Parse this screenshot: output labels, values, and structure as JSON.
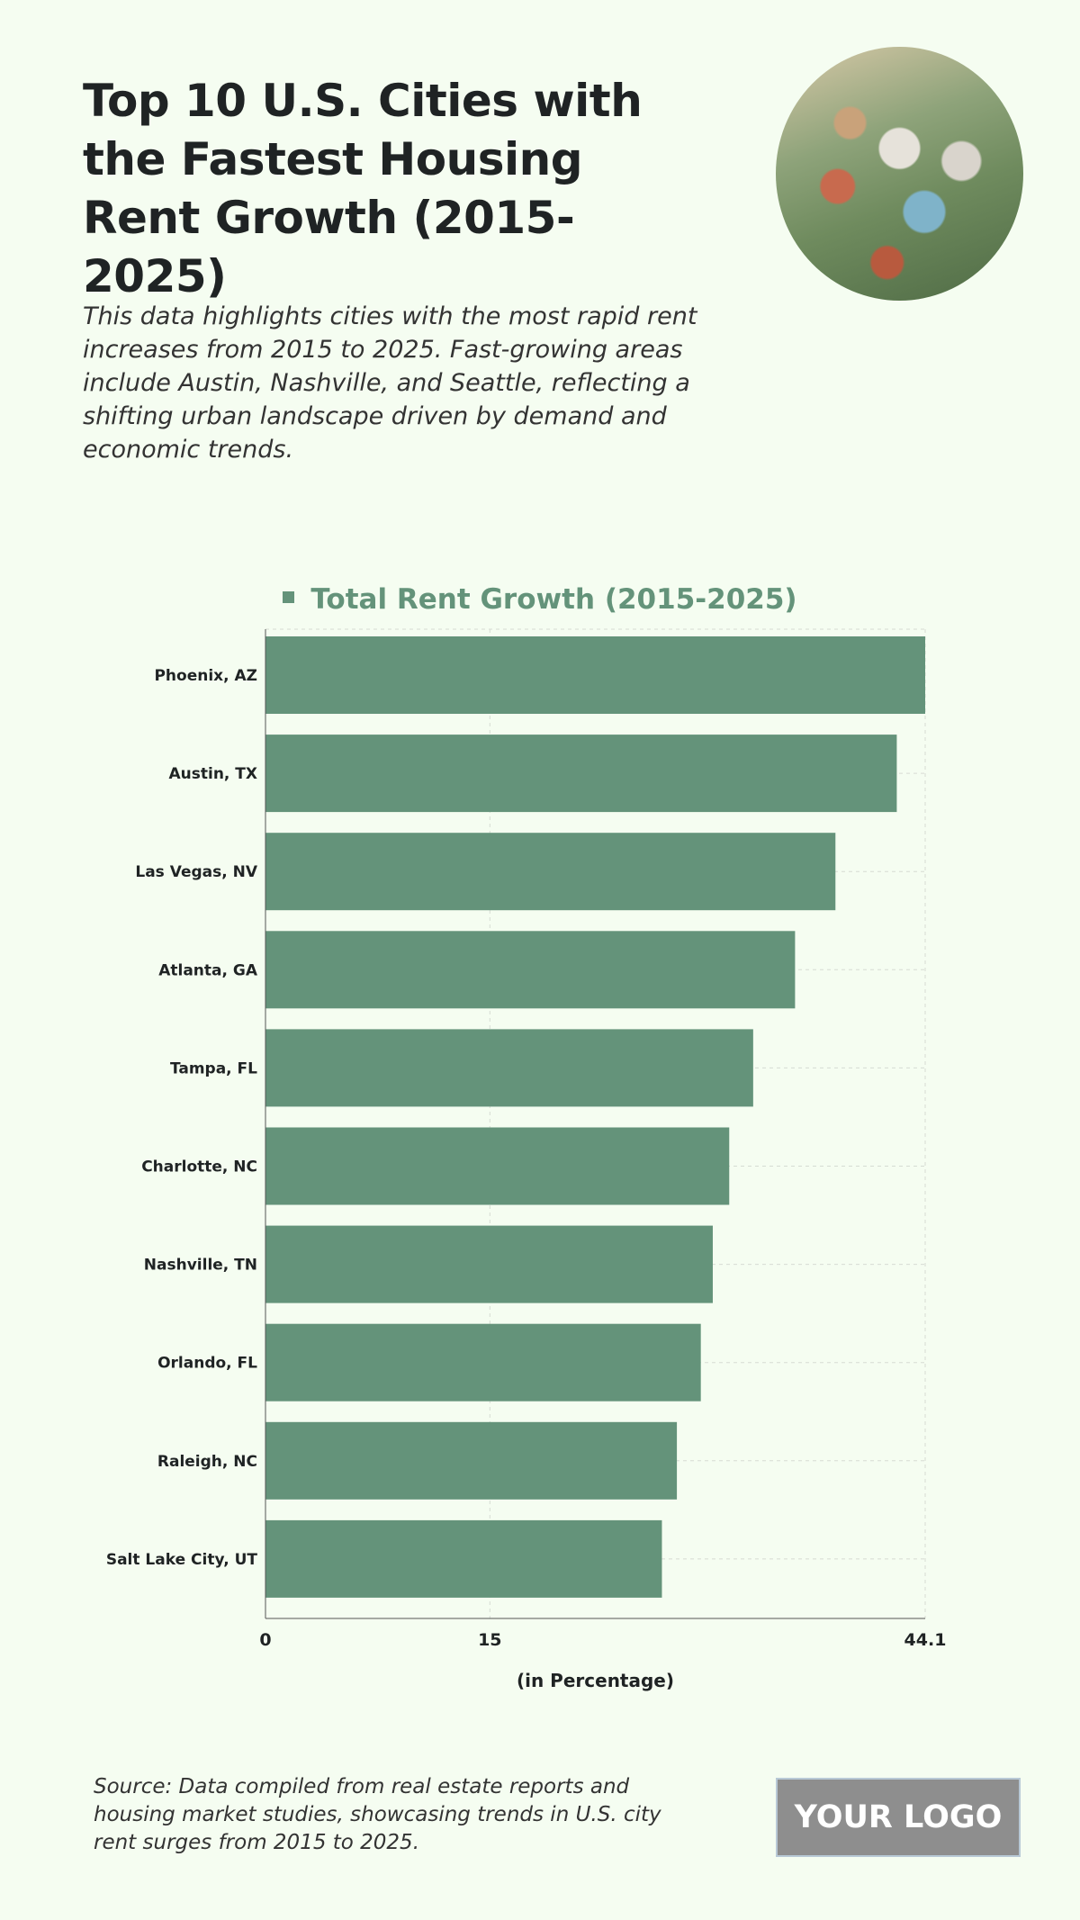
{
  "header": {
    "title": "Top 10 U.S. Cities with the Fastest Housing Rent Growth (2015-2025)",
    "description": "This data highlights cities with the most rapid rent increases from 2015 to 2025. Fast-growing areas include Austin, Nashville, and Seattle, reflecting a shifting urban landscape driven by demand and economic trends."
  },
  "footer": {
    "source": "Source: Data compiled from real estate reports and housing market studies, showcasing trends in U.S. city rent surges from 2015 to 2025.",
    "logo": "YOUR LOGO"
  },
  "chart_data": {
    "type": "bar",
    "orientation": "horizontal",
    "categories": [
      "Phoenix, AZ",
      "Austin, TX",
      "Las Vegas, NV",
      "Atlanta, GA",
      "Tampa, FL",
      "Charlotte, NC",
      "Nashville, TN",
      "Orlando, FL",
      "Raleigh, NC",
      "Salt Lake City, UT"
    ],
    "series": [
      {
        "name": "Total Rent Growth (2015-2025)",
        "values": [
          44.1,
          42.2,
          38.1,
          35.4,
          32.6,
          31.0,
          29.9,
          29.1,
          27.5,
          26.5
        ]
      }
    ],
    "xlabel": "(in Percentage)",
    "ylabel": "",
    "xlim": [
      0,
      44.1
    ],
    "xticks": [
      "0",
      "15",
      "44.1"
    ],
    "grid": true,
    "legend": "top-center",
    "colors": {
      "bar": "#64937a",
      "background": "#f5fdf1"
    }
  }
}
